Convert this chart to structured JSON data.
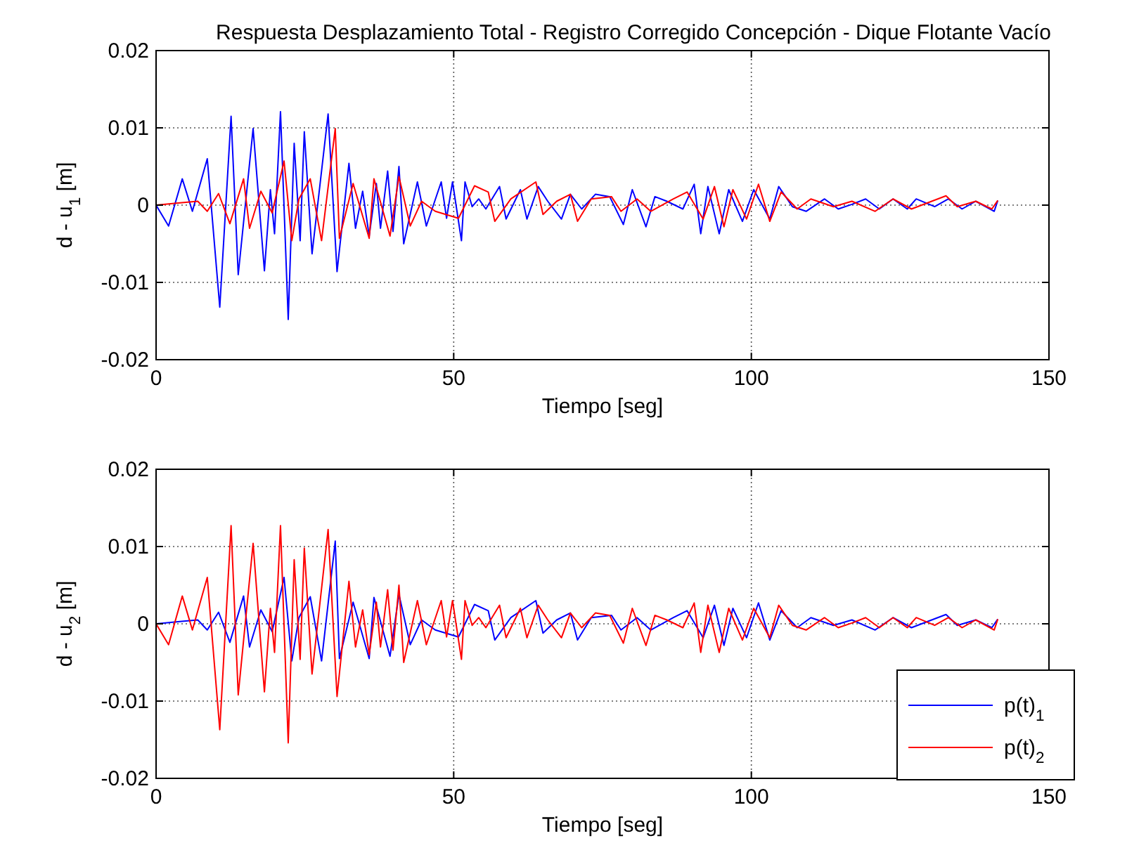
{
  "chart_data": [
    {
      "type": "line",
      "title": "Respuesta Desplazamiento Total - Registro Corregido Concepción - Dique Flotante Vacío",
      "xlabel": "Tiempo [seg]",
      "ylabel": "d - u$_{1}$ [m]",
      "xlim": [
        0,
        150
      ],
      "xticks": [
        0,
        50,
        100,
        150
      ],
      "ylim": [
        -0.02,
        0.02
      ],
      "yticks": [
        -0.02,
        -0.01,
        0,
        0.01,
        0.02
      ],
      "grid": true,
      "legend": false,
      "series": [
        {
          "color": "#0000ff",
          "x": [
            0,
            2.1,
            4.4,
            6.1,
            8.6,
            10.7,
            12.6,
            13.8,
            16.3,
            18.2,
            19.2,
            19.9,
            20.9,
            22.2,
            23.2,
            24.2,
            24.9,
            26.2,
            28.9,
            30.4,
            32.4,
            33.5,
            34.7,
            35.8,
            37,
            37.7,
            38.9,
            39.8,
            40.8,
            41.6,
            43.9,
            45.4,
            47.9,
            48.8,
            49.8,
            51.3,
            51.9,
            53.1,
            54.2,
            55.4,
            57.7,
            58.8,
            61.2,
            62.3,
            64.2,
            65.8,
            68.1,
            69.6,
            71.5,
            73.8,
            76.2,
            78.5,
            80,
            82.3,
            83.8,
            85.8,
            88.5,
            90.4,
            91.5,
            92.7,
            94.6,
            96.2,
            98.5,
            100.4,
            103.1,
            104.6,
            106.9,
            109.2,
            112.3,
            114.6,
            116.9,
            119.2,
            121.5,
            123.8,
            126.2,
            127.7,
            130.8,
            133.1,
            135.4,
            137.7,
            140.8,
            141.4
          ],
          "values": [
            0,
            -0.0027,
            0.0034,
            -0.0008,
            0.006,
            -0.0132,
            0.0115,
            -0.009,
            0.0099,
            -0.0085,
            0.002,
            -0.0037,
            0.0121,
            -0.0148,
            0.008,
            -0.0046,
            0.0095,
            -0.0063,
            0.0118,
            -0.0086,
            0.0054,
            -0.003,
            0.0018,
            -0.004,
            0.0028,
            -0.003,
            0.0044,
            -0.0034,
            0.005,
            -0.005,
            0.003,
            -0.0027,
            0.003,
            -0.0017,
            0.003,
            -0.0046,
            0.003,
            -0.0002,
            0.0008,
            -0.0005,
            0.0024,
            -0.0018,
            0.002,
            -0.0018,
            0.0024,
            0.0005,
            -0.0018,
            0.0014,
            -0.0005,
            0.0014,
            0.0011,
            -0.0025,
            0.002,
            -0.0028,
            0.0011,
            0.0005,
            -0.0005,
            0.0027,
            -0.0037,
            0.0024,
            -0.0037,
            0.002,
            -0.0021,
            0.002,
            -0.0018,
            0.0024,
            -0.0002,
            -0.0008,
            0.0008,
            -0.0005,
            0.0001,
            0.0008,
            -0.0005,
            0.0008,
            -0.0005,
            0.0008,
            -0.0002,
            0.0008,
            -0.0005,
            0.0005,
            -0.0008,
            0.0006
          ]
        },
        {
          "color": "#ff0000",
          "x": [
            0,
            4,
            7,
            8.6,
            10.5,
            12.4,
            14.7,
            15.7,
            17.6,
            19.5,
            21.5,
            22.8,
            24,
            25.9,
            27.8,
            30.1,
            30.8,
            33.1,
            35.8,
            36.6,
            39.3,
            40.8,
            42.7,
            44.6,
            46.9,
            50.8,
            53.5,
            55.8,
            56.9,
            59.6,
            63.8,
            65,
            67.3,
            69.6,
            70.8,
            73.1,
            76.5,
            78.1,
            80.8,
            83.1,
            86.9,
            89.2,
            91.9,
            93.8,
            95.4,
            96.9,
            99.2,
            101.2,
            103.1,
            105,
            107.7,
            110,
            113.8,
            116.9,
            120.8,
            123.8,
            126.9,
            132.7,
            134.6,
            137.7,
            140.4,
            141.4
          ],
          "values": [
            0,
            0.0003,
            0.0005,
            -0.0008,
            0.0015,
            -0.0024,
            0.0034,
            -0.003,
            0.0018,
            -0.001,
            0.0057,
            -0.0046,
            0.0008,
            0.0034,
            -0.0046,
            0.0099,
            -0.0043,
            0.0028,
            -0.0043,
            0.0034,
            -0.004,
            0.0037,
            -0.0027,
            0.0005,
            -0.0008,
            -0.0017,
            0.0025,
            0.0017,
            -0.0021,
            0.0008,
            0.003,
            -0.0012,
            0.0005,
            0.0014,
            -0.0021,
            0.0008,
            0.0011,
            -0.0008,
            0.0008,
            -0.0008,
            0.0008,
            0.0017,
            -0.0018,
            0.0024,
            -0.0028,
            0.002,
            -0.0018,
            0.0027,
            -0.0021,
            0.0017,
            -0.0005,
            0.0008,
            -0.0002,
            0.0005,
            -0.0008,
            0.0008,
            -0.0005,
            0.0012,
            -0.0002,
            0.0005,
            -0.0005,
            0.0006
          ]
        }
      ]
    },
    {
      "type": "line",
      "xlabel": "Tiempo [seg]",
      "ylabel": "d - u$_{2}$ [m]",
      "xlim": [
        0,
        150
      ],
      "xticks": [
        0,
        50,
        100,
        150
      ],
      "ylim": [
        -0.02,
        0.02
      ],
      "yticks": [
        -0.02,
        -0.01,
        0,
        0.01,
        0.02
      ],
      "grid": true,
      "legend": "bottom right",
      "series": [
        {
          "name": "p(t)$_{1}$",
          "color": "#0000ff",
          "x": [
            0,
            4,
            7,
            8.6,
            10.5,
            12.4,
            14.7,
            15.7,
            17.6,
            19.5,
            21.5,
            22.8,
            24,
            25.9,
            27.8,
            30.1,
            30.8,
            33.1,
            35.8,
            36.6,
            39.3,
            40.8,
            42.7,
            44.6,
            46.9,
            50.8,
            53.5,
            55.8,
            56.9,
            59.6,
            63.8,
            65,
            67.3,
            69.6,
            70.8,
            73.1,
            76.5,
            78.1,
            80.8,
            83.1,
            86.9,
            89.2,
            91.9,
            93.8,
            95.4,
            96.9,
            99.2,
            101.2,
            103.1,
            105,
            107.7,
            110,
            113.8,
            116.9,
            120.8,
            123.8,
            126.9,
            132.7,
            134.6,
            137.7,
            140.4,
            141.4
          ],
          "values": [
            0,
            0.0003,
            0.0005,
            -0.0008,
            0.0015,
            -0.0024,
            0.0036,
            -0.003,
            0.0018,
            -0.001,
            0.006,
            -0.0048,
            0.0008,
            0.0035,
            -0.0048,
            0.0107,
            -0.0045,
            0.0028,
            -0.0045,
            0.0034,
            -0.0042,
            0.0038,
            -0.0027,
            0.0005,
            -0.0008,
            -0.0017,
            0.0025,
            0.0017,
            -0.0021,
            0.0008,
            0.003,
            -0.0012,
            0.0005,
            0.0014,
            -0.0021,
            0.0008,
            0.0011,
            -0.0008,
            0.0008,
            -0.0008,
            0.0008,
            0.0017,
            -0.0018,
            0.0024,
            -0.0028,
            0.002,
            -0.0018,
            0.0027,
            -0.0021,
            0.0017,
            -0.0005,
            0.0008,
            -0.0002,
            0.0005,
            -0.0008,
            0.0008,
            -0.0005,
            0.0012,
            -0.0002,
            0.0005,
            -0.0005,
            0.0006
          ]
        },
        {
          "name": "p(t)$_{2}$",
          "color": "#ff0000",
          "x": [
            0,
            2.1,
            4.4,
            6.1,
            8.6,
            10.7,
            12.6,
            13.8,
            16.3,
            18.2,
            19.2,
            19.9,
            20.9,
            22.2,
            23.2,
            24.2,
            24.9,
            26.2,
            28.9,
            30.4,
            32.4,
            33.5,
            34.7,
            35.8,
            37,
            37.7,
            38.9,
            39.8,
            40.8,
            41.6,
            43.9,
            45.4,
            47.9,
            48.8,
            49.8,
            51.3,
            51.9,
            53.1,
            54.2,
            55.4,
            57.7,
            58.8,
            61.2,
            62.3,
            64.2,
            65.8,
            68.1,
            69.6,
            71.5,
            73.8,
            76.2,
            78.5,
            80,
            82.3,
            83.8,
            85.8,
            88.5,
            90.4,
            91.5,
            92.7,
            94.6,
            96.2,
            98.5,
            100.4,
            103.1,
            104.6,
            106.9,
            109.2,
            112.3,
            114.6,
            116.9,
            119.2,
            121.5,
            123.8,
            126.2,
            127.7,
            130.8,
            133.1,
            135.4,
            137.7,
            140.8,
            141.4
          ],
          "values": [
            0,
            -0.0027,
            0.0036,
            -0.0008,
            0.006,
            -0.0137,
            0.0127,
            -0.0092,
            0.0104,
            -0.0088,
            0.002,
            -0.0037,
            0.0127,
            -0.0154,
            0.0083,
            -0.0046,
            0.0098,
            -0.0065,
            0.0122,
            -0.0094,
            0.0055,
            -0.003,
            0.0018,
            -0.004,
            0.0028,
            -0.003,
            0.0044,
            -0.0034,
            0.005,
            -0.005,
            0.003,
            -0.0027,
            0.003,
            -0.0017,
            0.003,
            -0.0046,
            0.003,
            -0.0002,
            0.0008,
            -0.0005,
            0.0024,
            -0.0018,
            0.002,
            -0.0018,
            0.0024,
            0.0005,
            -0.0018,
            0.0014,
            -0.0005,
            0.0014,
            0.0011,
            -0.0025,
            0.002,
            -0.0028,
            0.0011,
            0.0005,
            -0.0005,
            0.0027,
            -0.0037,
            0.0024,
            -0.0037,
            0.002,
            -0.0021,
            0.002,
            -0.0018,
            0.0024,
            -0.0002,
            -0.0008,
            0.0008,
            -0.0005,
            0.0001,
            0.0008,
            -0.0005,
            0.0008,
            -0.0005,
            0.0008,
            -0.0002,
            0.0008,
            -0.0005,
            0.0005,
            -0.0008,
            0.0006
          ]
        }
      ]
    }
  ]
}
